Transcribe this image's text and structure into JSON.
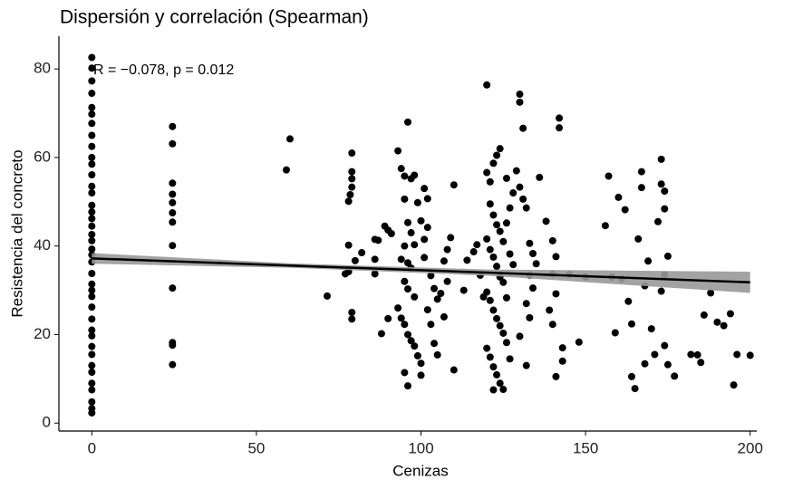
{
  "chart_data": {
    "type": "scatter",
    "title": "Dispersión y correlación (Spearman)",
    "x_label": "Cenizas",
    "y_label": "Resistencia del concreto",
    "annotation": "R = −0.078, p = 0.012",
    "xlim": [
      -10,
      202
    ],
    "ylim": [
      -1.8,
      87.4
    ],
    "xticks": [
      0,
      50,
      100,
      150,
      200
    ],
    "yticks": [
      0,
      20,
      40,
      60,
      80
    ],
    "grid": false,
    "series": [
      {
        "color": "#000000",
        "x": [
          0,
          0,
          0,
          0,
          0,
          0,
          0,
          0,
          0,
          0,
          0,
          0,
          0,
          0,
          0,
          0,
          0,
          0,
          0,
          0,
          0,
          0,
          0,
          0,
          0,
          0,
          0,
          0,
          0,
          0,
          0,
          0,
          0,
          0,
          0,
          0,
          0,
          0,
          0,
          0,
          24.5,
          24.5,
          24.5,
          24.5,
          24.5,
          24.5,
          24.5,
          24.5,
          24.5,
          24.5,
          24.5,
          24.5,
          59.1,
          60.2,
          71.5,
          77,
          78,
          78,
          78.5,
          79,
          79,
          79,
          79,
          79,
          79,
          78,
          80,
          82,
          86,
          87,
          86,
          89,
          90,
          88,
          90,
          91,
          86,
          93,
          94,
          95,
          96,
          97,
          98,
          95,
          99,
          96,
          97,
          98,
          95,
          94,
          96,
          97,
          95,
          96,
          98,
          93,
          94,
          95,
          96,
          97,
          98,
          99,
          100,
          95,
          96,
          100,
          101,
          101,
          102,
          100,
          102,
          101,
          103,
          104,
          105,
          102,
          103,
          104,
          105,
          106,
          107,
          108,
          109,
          107,
          110,
          108,
          110,
          113,
          114,
          116,
          117,
          118,
          119,
          120,
          121,
          122,
          123,
          124,
          121,
          122,
          123,
          124,
          120,
          121,
          122,
          123,
          124,
          125,
          120,
          121,
          122,
          123,
          124,
          125,
          126,
          120,
          121,
          122,
          123,
          124,
          122,
          125,
          126,
          127,
          128,
          126,
          120,
          125,
          127,
          128,
          126,
          127,
          130,
          130,
          131,
          129,
          130,
          131,
          132,
          133,
          134,
          135,
          133,
          134,
          132,
          133,
          130,
          132,
          136,
          138,
          140,
          141,
          140,
          142,
          142,
          141,
          143,
          141,
          143,
          139,
          140,
          145,
          148,
          150,
          156,
          157,
          158,
          159,
          160,
          161,
          162,
          163,
          164,
          164,
          165,
          166,
          167,
          167,
          168,
          168,
          169,
          170,
          171,
          172,
          173,
          173,
          174,
          174,
          175,
          174,
          173,
          174,
          175,
          177,
          182,
          184,
          185,
          186,
          188,
          190,
          192,
          194,
          195,
          196,
          200
        ],
        "values": [
          82.6,
          80.2,
          77.3,
          74.5,
          71.3,
          69.8,
          67.7,
          65,
          62.5,
          60,
          58.5,
          56.1,
          53.5,
          52,
          49.2,
          47.7,
          46.2,
          44.5,
          42.6,
          41.2,
          39.3,
          38,
          36.4,
          33.8,
          31.4,
          30,
          28.6,
          26.2,
          23.5,
          21,
          19.7,
          17.3,
          15.5,
          13,
          11.5,
          9,
          7.5,
          4.8,
          3.3,
          2.3,
          67,
          63.1,
          54.2,
          51.7,
          49.8,
          47.5,
          45.4,
          40.1,
          30.5,
          18.2,
          17.6,
          13.2,
          57.2,
          64.2,
          28.7,
          33.7,
          34.2,
          50.1,
          51.6,
          53.3,
          55.2,
          56.8,
          61,
          25,
          23.5,
          40.2,
          36.7,
          38.5,
          41.5,
          41.3,
          33.7,
          44.5,
          43.6,
          20.2,
          23.6,
          42.8,
          37,
          61.5,
          57.5,
          55.8,
          68,
          55.2,
          56,
          50.6,
          49.8,
          45.3,
          43,
          40.3,
          40,
          37,
          36.2,
          35,
          32,
          30.3,
          28.5,
          26,
          23.7,
          22.3,
          20,
          18.6,
          17.4,
          15.2,
          13.5,
          11.4,
          8.4,
          10.8,
          41.5,
          53,
          50.7,
          45.7,
          44.2,
          37.4,
          33.3,
          30.4,
          28,
          25.6,
          22.3,
          18,
          15.4,
          29.3,
          36.6,
          39.2,
          41.9,
          24,
          53.8,
          32,
          12,
          30,
          36.8,
          38.7,
          40.3,
          33.4,
          28.5,
          56.6,
          54.5,
          58.7,
          60.5,
          62,
          49.5,
          47,
          44.8,
          43.3,
          41.6,
          39.2,
          37.5,
          35.4,
          33,
          31.8,
          29.6,
          27.7,
          25.5,
          23.6,
          22,
          20.3,
          18.2,
          16.9,
          14.9,
          12.7,
          10.9,
          9,
          7.5,
          7.6,
          45.2,
          48.6,
          52,
          55.3,
          76.4,
          41,
          38.2,
          35.8,
          28.3,
          14.5,
          74.3,
          72.5,
          66.6,
          57,
          53.3,
          50.6,
          48.6,
          40.6,
          38.3,
          36,
          33.4,
          30.5,
          27,
          23.8,
          19.6,
          13,
          55.5,
          45.6,
          41.2,
          37.6,
          33.7,
          68.9,
          66.7,
          29.2,
          17,
          10.5,
          14,
          25.5,
          22.3,
          33.6,
          18.3,
          33,
          44.6,
          55.8,
          33,
          20.4,
          51,
          32.6,
          48.2,
          27.5,
          22.4,
          10.5,
          7.8,
          41.6,
          56.8,
          53.2,
          13.4,
          31,
          36.6,
          21.3,
          15.5,
          45.5,
          59.6,
          54,
          52.4,
          48.4,
          37.7,
          33.5,
          29.8,
          17.5,
          13.2,
          10.6,
          15.5,
          15.4,
          13.7,
          24.4,
          29.4,
          22.8,
          22,
          24.7,
          8.6,
          15.5,
          15.3
        ]
      }
    ],
    "fit": {
      "color": "#000000",
      "band_color": "#999999",
      "x": [
        0,
        60,
        120,
        200
      ],
      "values": [
        37.2,
        35.6,
        34.0,
        31.8
      ],
      "lower": [
        36.0,
        35.1,
        33.3,
        29.4
      ],
      "upper": [
        38.4,
        36.1,
        34.7,
        34.2
      ]
    }
  }
}
